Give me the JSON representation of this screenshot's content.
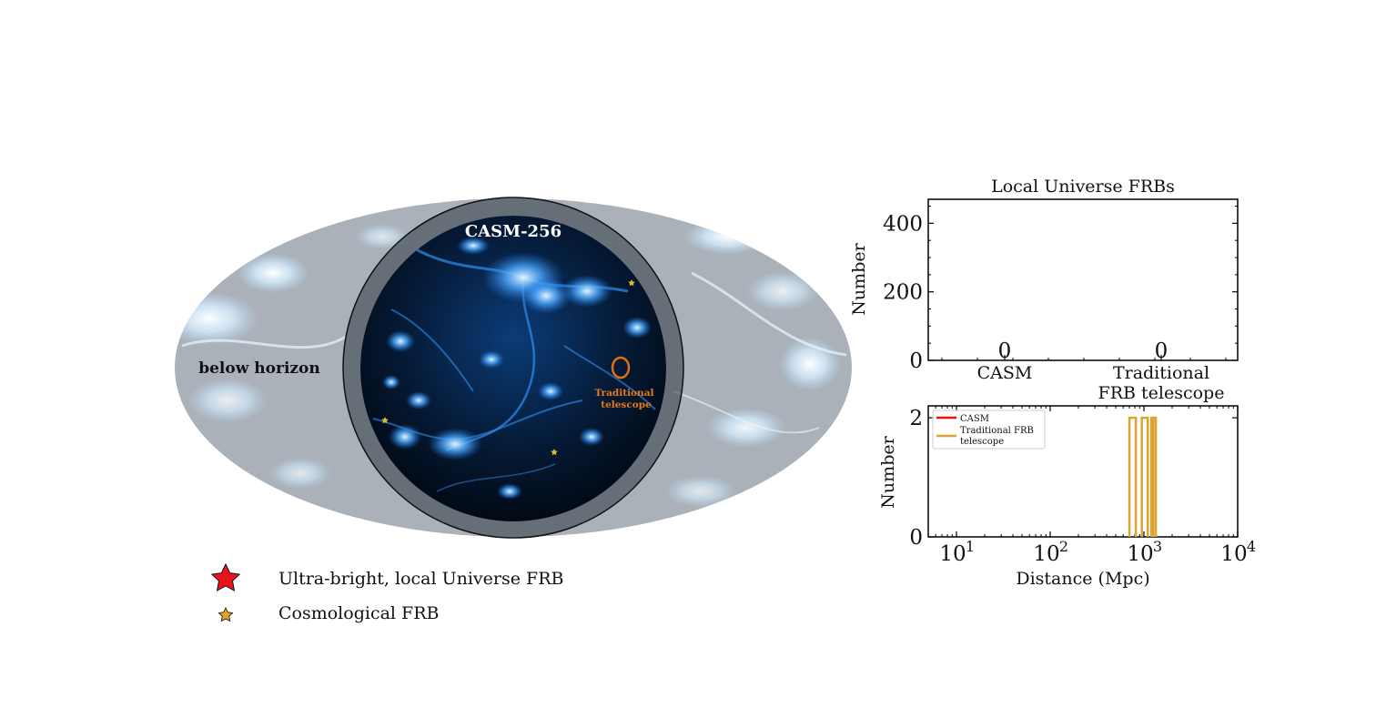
{
  "sky_map": {
    "projection": "mollweide",
    "background_label": "below horizon",
    "field_label": "CASM-256",
    "telescope_label_line1": "Traditional",
    "telescope_label_line2": "telescope",
    "colors": {
      "below_horizon": "#a9b0b8",
      "sky_bright": "#9fd3ff",
      "sky_dark": "#020d1c",
      "telescope_beam": "#e06e12",
      "cosmological_frb": "#d4c12a",
      "local_frb": "#e8141c"
    },
    "legend": [
      {
        "label": "Ultra-bright, local Universe FRB",
        "marker": "large-red-star-icon"
      },
      {
        "label": "Cosmological FRB",
        "marker": "small-gold-star-icon"
      }
    ]
  },
  "chart_data": [
    {
      "type": "bar",
      "title": "Local Universe FRBs",
      "xlabel": "",
      "ylabel": "Number",
      "categories": [
        "CASM",
        "Traditional\nFRB telescope"
      ],
      "category_lines": [
        [
          "CASM"
        ],
        [
          "Traditional",
          "FRB telescope"
        ]
      ],
      "values": [
        0,
        0
      ],
      "value_labels": [
        "0",
        "0"
      ],
      "ylim": [
        0,
        470
      ],
      "yticks": [
        0,
        200,
        400
      ],
      "ytick_labels": [
        "0",
        "200",
        "400"
      ]
    },
    {
      "type": "line",
      "title": "",
      "xlabel": "Distance (Mpc)",
      "ylabel": "Number",
      "xscale": "log",
      "xlim": [
        5,
        10000
      ],
      "ylim": [
        0,
        2.2
      ],
      "xticks": [
        10,
        100,
        1000,
        10000
      ],
      "xtick_base": "10",
      "xtick_exponents": [
        "1",
        "2",
        "3",
        "4"
      ],
      "yticks": [
        0,
        2
      ],
      "ytick_labels": [
        "0",
        "2"
      ],
      "legend_position": "top-left",
      "series": [
        {
          "name": "CASM",
          "color": "#ee1111",
          "bins": []
        },
        {
          "name": "Traditional FRB telescope",
          "name_lines": [
            "Traditional FRB",
            "telescope"
          ],
          "color": "#dba534",
          "bins": [
            [
              700,
              820,
              2
            ],
            [
              950,
              1100,
              2
            ],
            [
              1200,
              1260,
              2
            ],
            [
              1260,
              1340,
              2
            ]
          ]
        }
      ]
    }
  ]
}
